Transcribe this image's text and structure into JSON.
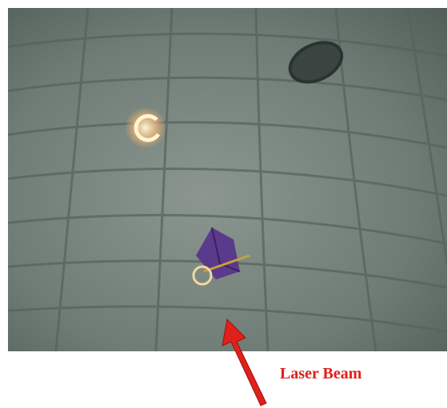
{
  "annotation": {
    "label": "Laser Beam"
  }
}
